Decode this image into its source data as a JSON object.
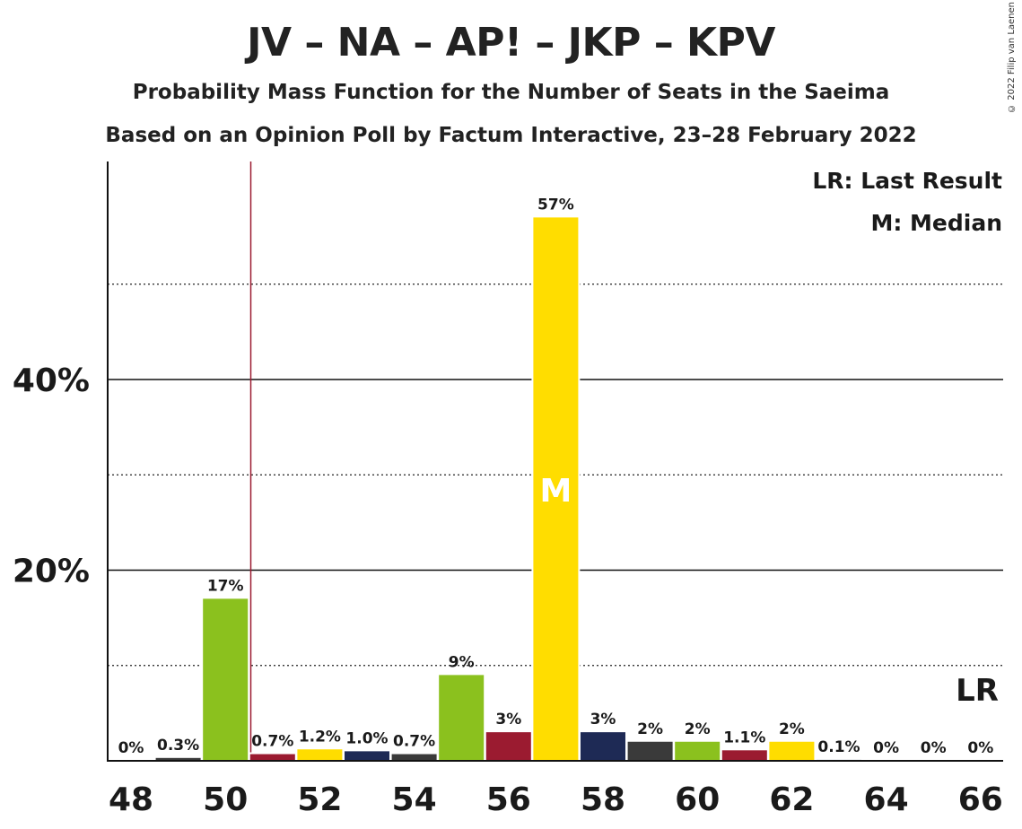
{
  "title": "JV – NA – AP! – JKP – KPV",
  "subtitle1": "Probability Mass Function for the Number of Seats in the Saeima",
  "subtitle2": "Based on an Opinion Poll by Factum Interactive, 23–28 February 2022",
  "copyright": "© 2022 Filip van Laenen",
  "legend": {
    "lr": "LR: Last Result",
    "m": "M: Median"
  },
  "lr_marker": "LR",
  "median_marker": "M",
  "colors": {
    "green": "#8BC11E",
    "red": "#9B1B30",
    "navy": "#1E2A55",
    "gray": "#3A3A3A",
    "yellow": "#FFDD00"
  },
  "chart_data": {
    "type": "bar",
    "x": [
      48,
      49,
      50,
      51,
      52,
      53,
      54,
      55,
      56,
      57,
      58,
      59,
      60,
      61,
      62,
      63,
      64,
      65,
      66
    ],
    "values": [
      0,
      0.3,
      17,
      0.7,
      1.2,
      1.0,
      0.7,
      9,
      3,
      57,
      3,
      2,
      2,
      1.1,
      2,
      0.1,
      0,
      0,
      0
    ],
    "labels": [
      "0%",
      "0.3%",
      "17%",
      "0.7%",
      "1.2%",
      "1.0%",
      "0.7%",
      "9%",
      "3%",
      "57%",
      "3%",
      "2%",
      "2%",
      "1.1%",
      "2%",
      "0.1%",
      "0%",
      "0%",
      "0%"
    ],
    "bar_colors": [
      "#8BC11E",
      "#3A3A3A",
      "#8BC11E",
      "#9B1B30",
      "#FFDD00",
      "#1E2A55",
      "#3A3A3A",
      "#8BC11E",
      "#9B1B30",
      "#FFDD00",
      "#1E2A55",
      "#3A3A3A",
      "#8BC11E",
      "#9B1B30",
      "#FFDD00",
      "#1E2A55",
      "#3A3A3A",
      "#8BC11E",
      "#9B1B30"
    ],
    "x_ticks": [
      48,
      50,
      52,
      54,
      56,
      58,
      60,
      62,
      64,
      66
    ],
    "y_ticks": [
      {
        "value": 20,
        "label": "20%"
      },
      {
        "value": 40,
        "label": "40%"
      }
    ],
    "minor_gridlines": [
      10,
      30,
      50
    ],
    "ylim": [
      0,
      62.5
    ],
    "last_result": 51,
    "median": 57,
    "grid": true,
    "legend_position": "top-right"
  }
}
